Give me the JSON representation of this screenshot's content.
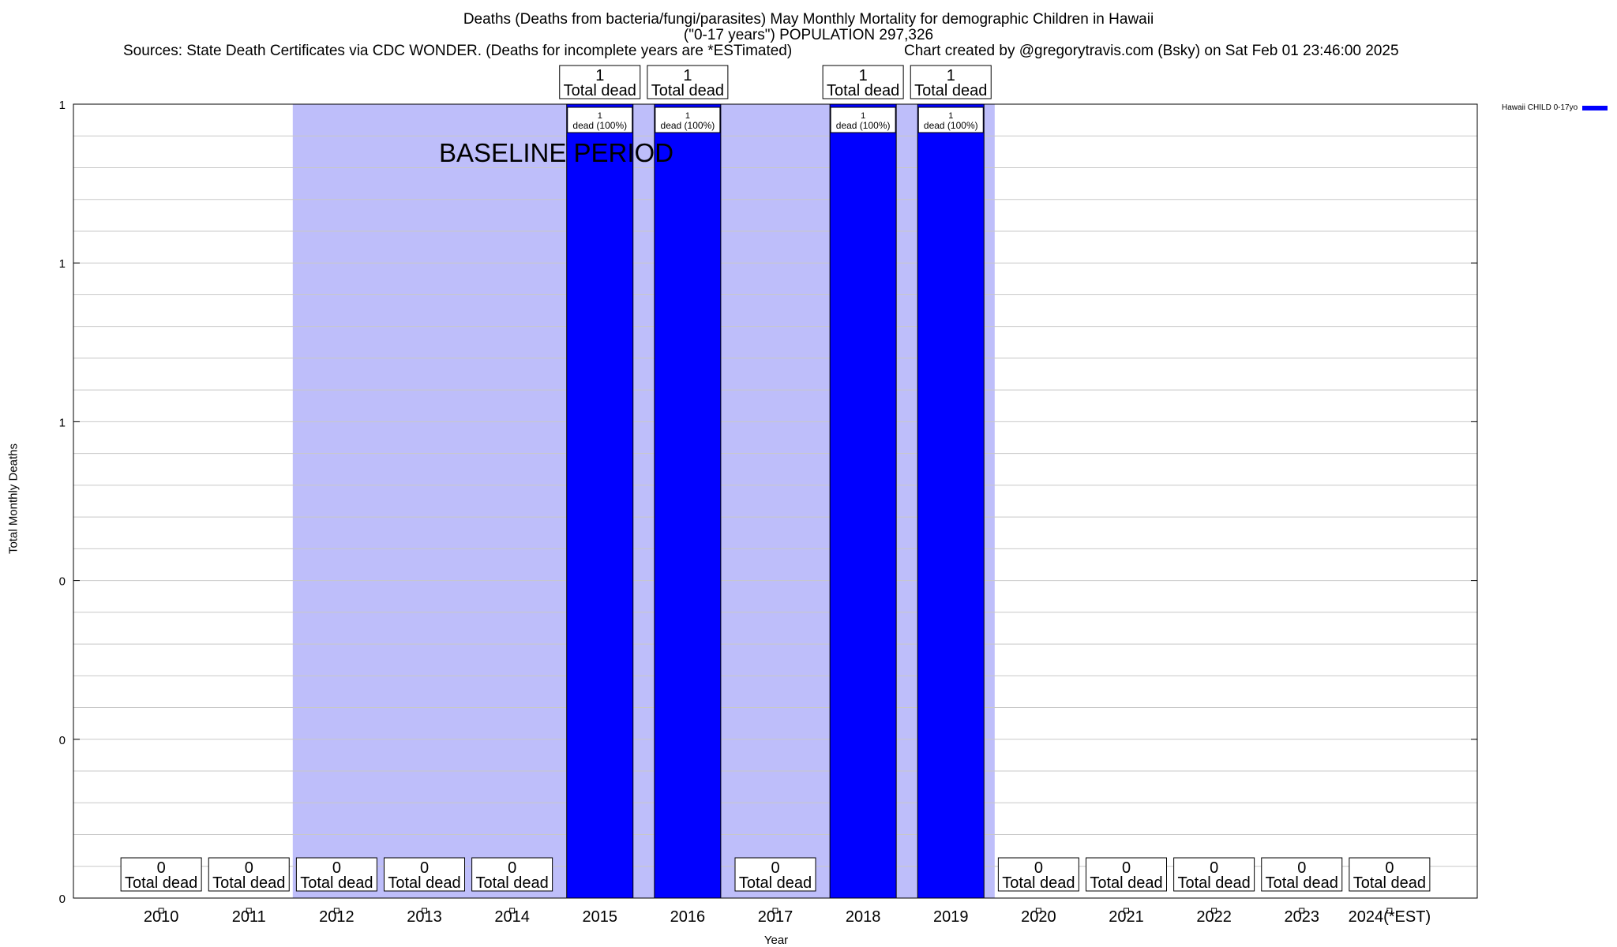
{
  "header": {
    "title_line1": "Deaths (Deaths from bacteria/fungi/parasites) May Monthly Mortality for demographic Children in Hawaii",
    "title_line2": "(\"0-17 years\") POPULATION 297,326",
    "sources": "Sources: State Death Certificates via CDC WONDER. (Deaths for incomplete years are *ESTimated)",
    "credit": "Chart created by @gregorytravis.com (Bsky) on Sat Feb 01 23:46:00 2025"
  },
  "chart_data": {
    "type": "bar",
    "categories": [
      "2010",
      "2011",
      "2012",
      "2013",
      "2014",
      "2015",
      "2016",
      "2017",
      "2018",
      "2019",
      "2020",
      "2021",
      "2022",
      "2023",
      "2024(*EST)"
    ],
    "series": [
      {
        "name": "Hawaii CHILD 0-17yo",
        "values": [
          0,
          0,
          0,
          0,
          0,
          1,
          1,
          0,
          1,
          1,
          0,
          0,
          0,
          0,
          0
        ],
        "color": "#0000ff"
      }
    ],
    "total_labels": [
      "0\nTotal dead",
      "0\nTotal dead",
      "0\nTotal dead",
      "0\nTotal dead",
      "0\nTotal dead",
      "1\nTotal dead",
      "1\nTotal dead",
      "0\nTotal dead",
      "1\nTotal dead",
      "1\nTotal dead",
      "0\nTotal dead",
      "0\nTotal dead",
      "0\nTotal dead",
      "0\nTotal dead",
      "0\nTotal dead"
    ],
    "bar_labels": [
      "",
      "",
      "",
      "",
      "",
      "1\ndead (100%)",
      "1\ndead (100%)",
      "",
      "1\ndead (100%)",
      "1\ndead (100%)",
      "",
      "",
      "",
      "",
      ""
    ],
    "xlabel": "Year",
    "ylabel": "Total Monthly Deaths",
    "ylim": [
      0,
      1
    ],
    "ytick_labels": [
      "0",
      "0",
      "0",
      "1",
      "1",
      "1"
    ],
    "grid": true,
    "baseline_period": {
      "label": "BASELINE PERIOD",
      "from": "2012",
      "to": "2019",
      "color": "#bebefa"
    },
    "legend_position": "top-right"
  }
}
